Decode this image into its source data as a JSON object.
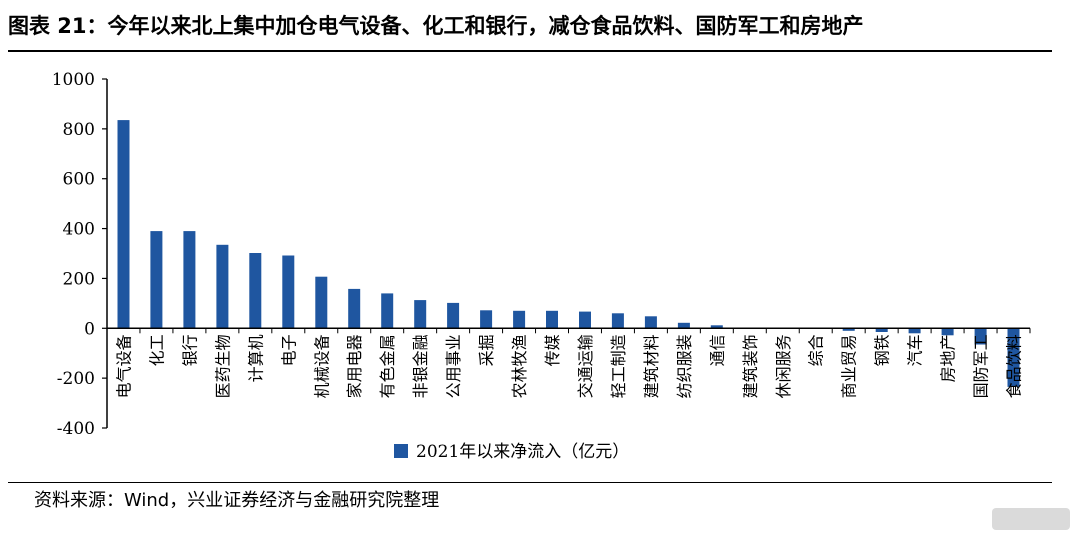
{
  "header": {
    "title": "图表 21：今年以来北上集中加仓电气设备、化工和银行，减仓食品饮料、国防军工和房地产"
  },
  "footer": {
    "source": "资料来源：Wind，兴业证券经济与金融研究院整理"
  },
  "colors": {
    "bar": "#1f56a0",
    "axis": "#000000"
  },
  "chart_data": {
    "type": "bar",
    "title": "",
    "xlabel": "",
    "ylabel": "",
    "ylim": [
      -400,
      1000
    ],
    "yticks": [
      1000,
      800,
      600,
      400,
      200,
      0,
      -200,
      -400
    ],
    "grid": false,
    "legend": "bottom-left",
    "categories": [
      "电气设备",
      "化工",
      "银行",
      "医药生物",
      "计算机",
      "电子",
      "机械设备",
      "家用电器",
      "有色金属",
      "非银金融",
      "公用事业",
      "采掘",
      "农林牧渔",
      "传媒",
      "交通运输",
      "轻工制造",
      "建筑材料",
      "纺织服装",
      "通信",
      "建筑装饰",
      "休闲服务",
      "综合",
      "商业贸易",
      "钢铁",
      "汽车",
      "房地产",
      "国防军工",
      "食品饮料"
    ],
    "series": [
      {
        "name": "2021年以来净流入（亿元）",
        "values": [
          835,
          390,
          390,
          335,
          302,
          292,
          207,
          158,
          140,
          113,
          102,
          72,
          70,
          70,
          67,
          60,
          48,
          22,
          12,
          3,
          0,
          -2,
          -10,
          -15,
          -20,
          -28,
          -65,
          -235
        ]
      }
    ]
  }
}
